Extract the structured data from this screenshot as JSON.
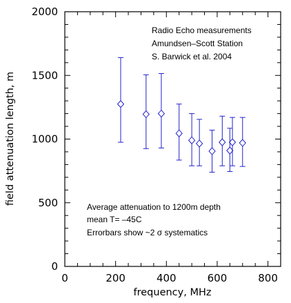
{
  "chart_data": {
    "type": "scatter",
    "xlabel": "frequency, MHz",
    "ylabel": "field attenuation length, m",
    "xlim": [
      0,
      850
    ],
    "ylim": [
      0,
      2000
    ],
    "xticks": [
      0,
      200,
      400,
      600,
      800
    ],
    "xtick_labels": [
      "0",
      "200",
      "400",
      "600",
      "800"
    ],
    "yticks": [
      0,
      500,
      1000,
      1500,
      2000
    ],
    "ytick_labels": [
      "0",
      "500",
      "1000",
      "1500",
      "2000"
    ],
    "grid": false,
    "marker": "diamond",
    "color": "#2222cc",
    "points": [
      {
        "x": 220,
        "y": 1275,
        "low": 975,
        "high": 1640
      },
      {
        "x": 320,
        "y": 1195,
        "low": 925,
        "high": 1505
      },
      {
        "x": 380,
        "y": 1200,
        "low": 930,
        "high": 1515
      },
      {
        "x": 450,
        "y": 1045,
        "low": 835,
        "high": 1275
      },
      {
        "x": 500,
        "y": 990,
        "low": 790,
        "high": 1200
      },
      {
        "x": 530,
        "y": 965,
        "low": 790,
        "high": 1155
      },
      {
        "x": 580,
        "y": 905,
        "low": 740,
        "high": 1070
      },
      {
        "x": 620,
        "y": 975,
        "low": 790,
        "high": 1180
      },
      {
        "x": 650,
        "y": 910,
        "low": 745,
        "high": 1085
      },
      {
        "x": 660,
        "y": 975,
        "low": 790,
        "high": 1170
      },
      {
        "x": 700,
        "y": 970,
        "low": 785,
        "high": 1170
      }
    ],
    "annotations_top": [
      "Radio Echo measurements",
      "Amundsen–Scott Station",
      "S. Barwick et al. 2004"
    ],
    "annotations_bottom": [
      "Average attenuation to 1200m depth",
      "mean T= –45C",
      "Errorbars show ~2 σ  systematics"
    ]
  }
}
